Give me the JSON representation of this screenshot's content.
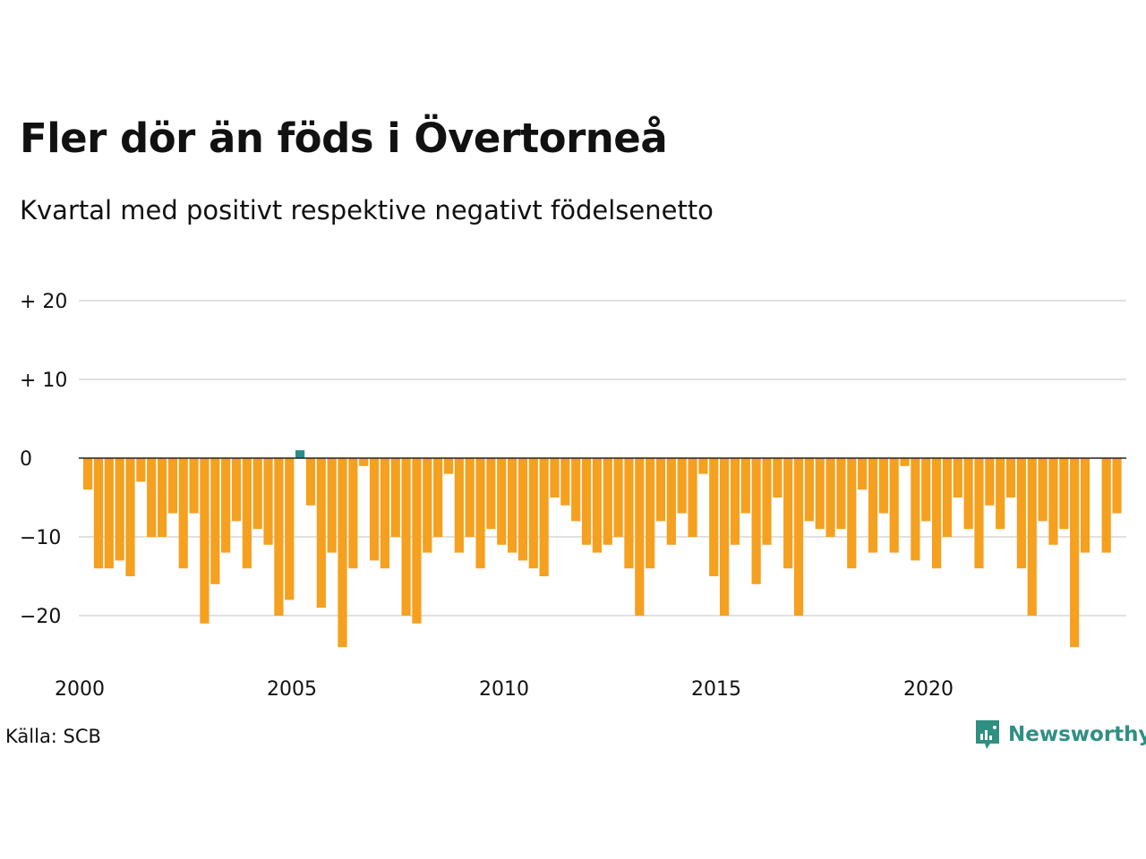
{
  "title": "Fler dör än föds i Övertorneå",
  "subtitle": "Kvartal med positivt respektive negativt födelsenetto",
  "source": "Källa: SCB",
  "brand": "Newsworthy",
  "brand_icon": "newsworthy-logo-icon",
  "colors": {
    "negative": "#f5a01f",
    "positive": "#2a8c86",
    "grid": "#e1e1e1",
    "zero_line": "#222222",
    "brand": "#2f8f83"
  },
  "chart_data": {
    "type": "bar",
    "title": "Fler dör än föds i Övertorneå",
    "subtitle": "Kvartal med positivt respektive negativt födelsenetto",
    "xlabel": "",
    "ylabel": "",
    "ylim": [
      -25,
      22
    ],
    "grid": true,
    "y_ticks": [
      {
        "value": 20,
        "label": "+ 20"
      },
      {
        "value": 10,
        "label": "+ 10"
      },
      {
        "value": 0,
        "label": "0"
      },
      {
        "value": -10,
        "label": "−10"
      },
      {
        "value": -20,
        "label": "−20"
      }
    ],
    "x_ticks": [
      {
        "value": 2000,
        "label": "2000"
      },
      {
        "value": 2005,
        "label": "2005"
      },
      {
        "value": 2010,
        "label": "2010"
      },
      {
        "value": 2015,
        "label": "2015"
      },
      {
        "value": 2020,
        "label": "2020"
      }
    ],
    "start_year": 2000,
    "periods_per_year": 4,
    "values": [
      -4,
      -14,
      -14,
      -13,
      -15,
      -3,
      -10,
      -10,
      -7,
      -14,
      -7,
      -21,
      -16,
      -12,
      -8,
      -14,
      -9,
      -11,
      -20,
      -18,
      1,
      -6,
      -19,
      -12,
      -24,
      -14,
      -1,
      -13,
      -14,
      -10,
      -20,
      -21,
      -12,
      -10,
      -2,
      -12,
      -10,
      -14,
      -9,
      -11,
      -12,
      -13,
      -14,
      -15,
      -5,
      -6,
      -8,
      -11,
      -12,
      -11,
      -10,
      -14,
      -20,
      -14,
      -8,
      -11,
      -7,
      -10,
      -2,
      -15,
      -20,
      -11,
      -7,
      -16,
      -11,
      -5,
      -14,
      -20,
      -8,
      -9,
      -10,
      -9,
      -14,
      -4,
      -12,
      -7,
      -12,
      -1,
      -13,
      -8,
      -14,
      -10,
      -5,
      -9,
      -14,
      -6,
      -9,
      -5,
      -14,
      -20,
      -8,
      -11,
      -9,
      -24,
      -12,
      0,
      -12,
      -7
    ]
  }
}
